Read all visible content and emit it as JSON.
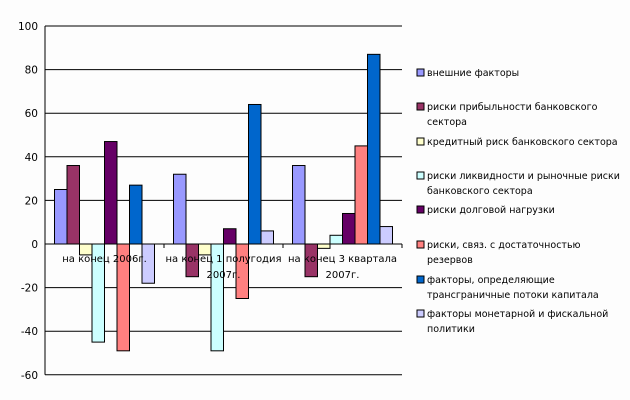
{
  "chart_data": {
    "type": "bar",
    "title": "",
    "xlabel": "",
    "ylabel": "",
    "ylim": [
      -60,
      100
    ],
    "yticks": [
      100,
      80,
      60,
      40,
      20,
      0,
      -20,
      -40,
      -60
    ],
    "grid": true,
    "legend_position": "right",
    "categories": [
      [
        "на конец 2006г."
      ],
      [
        "на конец 1 полугодия",
        "2007г."
      ],
      [
        "на конец 3 квартала",
        "2007г."
      ]
    ],
    "series": [
      {
        "name": [
          "внешние факторы"
        ],
        "color": "#9999ff",
        "values": [
          25,
          32,
          36
        ]
      },
      {
        "name": [
          "риски прибыльности банковского",
          "сектора"
        ],
        "color": "#993366",
        "values": [
          36,
          -15,
          -15
        ]
      },
      {
        "name": [
          "кредитный риск банковского сектора"
        ],
        "color": "#ffffcc",
        "values": [
          -5,
          -5,
          -2
        ]
      },
      {
        "name": [
          "риски ликвидности и рыночные риски",
          "банковского сектора"
        ],
        "color": "#ccffff",
        "values": [
          -45,
          -49,
          4
        ]
      },
      {
        "name": [
          "риски долговой нагрузки"
        ],
        "color": "#660066",
        "values": [
          47,
          7,
          14
        ]
      },
      {
        "name": [
          "риски, связ. с достаточностью",
          "резервов"
        ],
        "color": "#ff8080",
        "values": [
          -49,
          -25,
          45
        ]
      },
      {
        "name": [
          "факторы, определяющие",
          "трансграничные потоки капитала"
        ],
        "color": "#0066cc",
        "values": [
          27,
          64,
          87
        ]
      },
      {
        "name": [
          "факторы монетарной и фискальной",
          "политики"
        ],
        "color": "#ccccff",
        "values": [
          -18,
          6,
          8
        ]
      }
    ]
  }
}
